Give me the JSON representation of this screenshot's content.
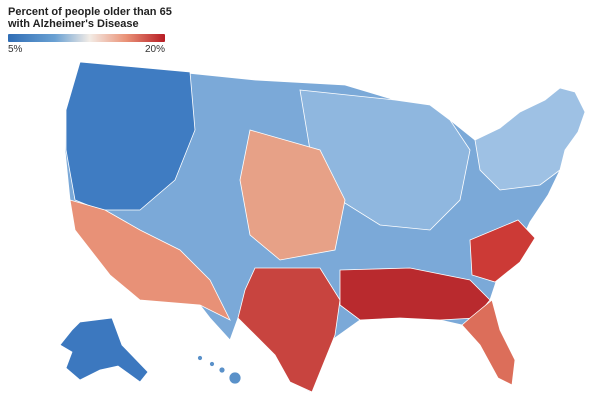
{
  "legend": {
    "title": "Percent of people older than 65 with Alzheimer's Disease",
    "min_label": "5%",
    "max_label": "20%",
    "colors": [
      "#2f6db5",
      "#6aa1d3",
      "#f3ece6",
      "#ea9378",
      "#b71c24"
    ]
  },
  "map": {
    "type": "choropleth",
    "geography": "US counties",
    "regions": [
      {
        "name": "contiguous-us",
        "color": "#7ba9d8"
      },
      {
        "name": "alaska",
        "color": "#3c78bf"
      },
      {
        "name": "hawaii",
        "color": "#5a91c9"
      },
      {
        "name": "southwest",
        "color": "#e89177"
      },
      {
        "name": "great-plains",
        "color": "#e7a187"
      },
      {
        "name": "texas",
        "color": "#c8443f"
      },
      {
        "name": "deep-south",
        "color": "#b92a2e"
      },
      {
        "name": "carolinas",
        "color": "#cc3a36"
      },
      {
        "name": "florida",
        "color": "#dc6e5a"
      },
      {
        "name": "northwest",
        "color": "#3f7cc2"
      },
      {
        "name": "midwest",
        "color": "#8fb7df"
      },
      {
        "name": "northeast",
        "color": "#9ec1e4"
      }
    ]
  }
}
